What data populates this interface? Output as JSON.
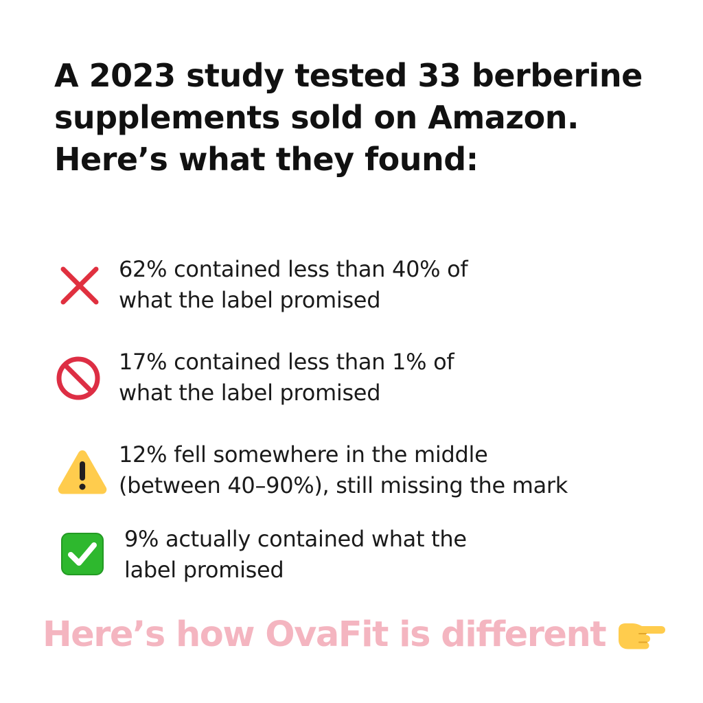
{
  "headline": {
    "lines": [
      "A 2023 study tested 33 berberine",
      "supplements sold on Amazon.",
      "Here’s what they found:"
    ]
  },
  "findings": [
    {
      "icon": "cross-mark-icon",
      "icon_color": "#e0303f",
      "lines": [
        "62% contained less than 40% of",
        "what the label promised"
      ]
    },
    {
      "icon": "prohibited-icon",
      "icon_color": "#dd2e44",
      "lines": [
        "17% contained less than 1% of",
        "what the label promised"
      ]
    },
    {
      "icon": "warning-icon",
      "icon_color": "#ffcc4d",
      "lines": [
        "12% fell somewhere in the middle",
        "(between 40–90%), still missing the mark"
      ]
    },
    {
      "icon": "check-mark-button-icon",
      "icon_color": "#2eb82e",
      "lines": [
        "9% actually contained what the",
        "label promised"
      ]
    }
  ],
  "cta": {
    "text": "Here’s how OvaFit is different",
    "icon": "pointing-right-hand-icon",
    "color": "#f4b5c0",
    "icon_color": "#ffcc4d"
  }
}
